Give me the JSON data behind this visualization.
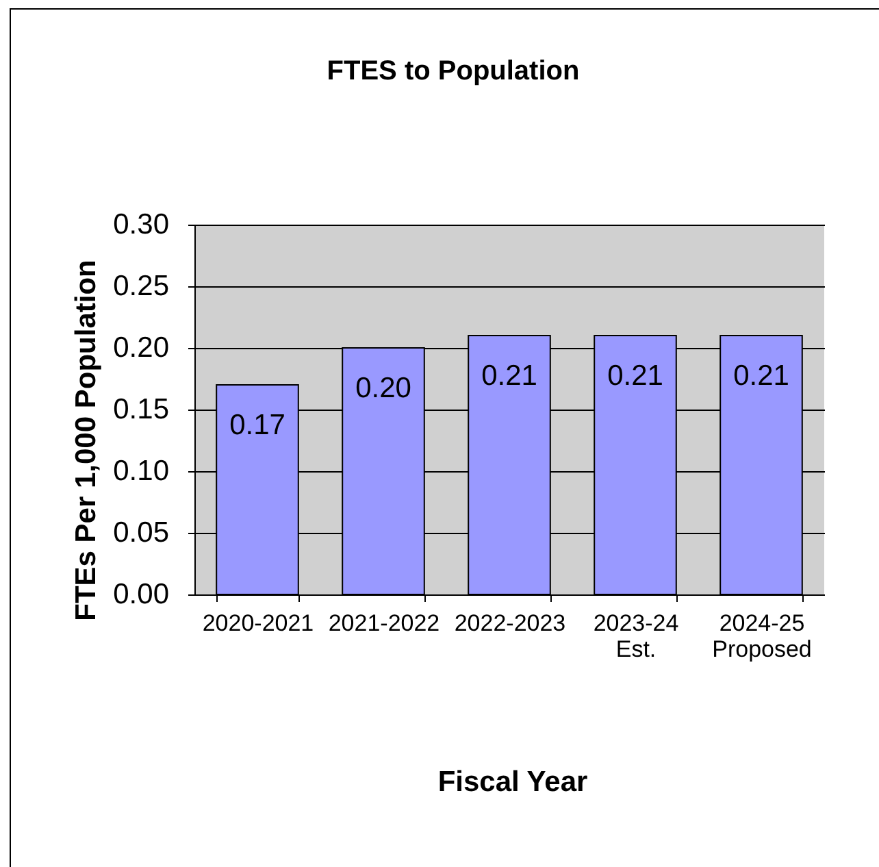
{
  "chart_data": {
    "type": "bar",
    "title": "FTES to Population",
    "xlabel": "Fiscal Year",
    "ylabel": "FTEs Per 1,000 Population",
    "categories": [
      "2020-2021",
      "2021-2022",
      "2022-2023",
      "2023-24 Est.",
      "2024-25 Proposed"
    ],
    "values": [
      0.17,
      0.2,
      0.21,
      0.21,
      0.21
    ],
    "value_labels": [
      "0.17",
      "0.20",
      "0.21",
      "0.21",
      "0.21"
    ],
    "color": "#9999ff",
    "ylim": [
      0,
      0.3
    ],
    "yticks": [
      {
        "value": 0,
        "label": "0.00"
      },
      {
        "value": 0.05,
        "label": "0.05"
      },
      {
        "value": 0.1,
        "label": "0.10"
      },
      {
        "value": 0.15,
        "label": "0.15"
      },
      {
        "value": 0.2,
        "label": "0.20"
      },
      {
        "value": 0.25,
        "label": "0.25"
      },
      {
        "value": 0.3,
        "label": "0.30"
      }
    ],
    "grid": "y"
  }
}
